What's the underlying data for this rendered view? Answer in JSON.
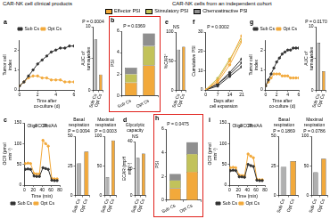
{
  "header": {
    "left": "CAR-NK cell clinical products",
    "right": "CAR-NK cells from an independent cohort"
  },
  "chart_data": [
    {
      "panel": "a",
      "type": "line",
      "x_label": "Time after co-culture (d)",
      "y_label": "Tumor cell index",
      "x": [
        0,
        0.5,
        1,
        1.5,
        2,
        2.5,
        3,
        3.5,
        4,
        4.5,
        5,
        5.5,
        6
      ],
      "xlim": [
        0,
        6
      ],
      "xticks": [
        0,
        2,
        4,
        6
      ],
      "ylim": [
        0,
        2.5
      ],
      "yticks": [
        0,
        1,
        2
      ],
      "series": [
        {
          "name": "Sub Cs",
          "color": "#333333",
          "values": [
            0.2,
            0.4,
            0.7,
            1.0,
            1.3,
            1.5,
            1.7,
            1.9,
            2.0,
            2.1,
            2.1,
            2.2,
            2.2
          ]
        },
        {
          "name": "Opt Cs",
          "color": "#f2a93b",
          "values": [
            0.2,
            0.4,
            0.6,
            0.7,
            0.7,
            0.6,
            0.6,
            0.5,
            0.5,
            0.5,
            0.4,
            0.4,
            0.4
          ]
        }
      ],
      "legend": "top",
      "marker": "circle",
      "grid": false
    },
    {
      "type": "bar",
      "y_label": "AUC of tumor index",
      "annotation": "P = 0.0004",
      "categories": [
        "Sub Cs",
        "Opt Cs"
      ],
      "values": [
        8,
        2.5
      ],
      "colors": [
        "#b0b0b0",
        "#f2a93b"
      ],
      "ylim": [
        0,
        10
      ],
      "yticks": [
        0,
        5,
        10
      ],
      "grid": false
    },
    {
      "panel": "b",
      "type": "bar",
      "stacked": true,
      "y_label": "PSI",
      "annotation": "P = 0.0369",
      "categories": [
        "Sub Cs",
        "Opt Cs"
      ],
      "series": [
        {
          "name": "Effector PSI",
          "color": "#f2a93b",
          "values": [
            1.2,
            2.8
          ]
        },
        {
          "name": "Stimulatory PSI",
          "color": "#c2c25a",
          "values": [
            0.8,
            1.8
          ]
        },
        {
          "name": "Chemoattractive PSI",
          "color": "#8f8f8f",
          "values": [
            0.6,
            1.2
          ]
        }
      ],
      "ylim": [
        0,
        6
      ],
      "yticks": [
        0,
        2,
        4,
        6
      ],
      "legend": "top",
      "grid": false
    },
    {
      "panel": "e",
      "type": "bar",
      "y_label": "%CAR⁺",
      "annotation": "NS",
      "categories": [
        "Sub Cs",
        "Opt Cs"
      ],
      "values": [
        70,
        75
      ],
      "colors": [
        "#b0b0b0",
        "#f2a93b"
      ],
      "ylim": [
        0,
        100
      ],
      "yticks": [
        0,
        50,
        100
      ],
      "grid": false
    },
    {
      "panel": "f",
      "type": "line",
      "x_label": "Days after cell expansion",
      "y_label": "Cumulative PSI",
      "annotation": "P = 0.0002",
      "x": [
        0,
        7,
        14,
        21
      ],
      "xlim": [
        0,
        21
      ],
      "xticks": [
        0,
        7,
        14,
        21
      ],
      "ylim": [
        0,
        30
      ],
      "yticks": [
        0,
        10,
        20,
        30
      ],
      "series": [
        {
          "color": "#f2a93b",
          "values": [
            0,
            5,
            15,
            28
          ]
        },
        {
          "color": "#f2a93b",
          "values": [
            0,
            4,
            13,
            25
          ]
        },
        {
          "color": "#c2c25a",
          "values": [
            0,
            6,
            16,
            26
          ]
        },
        {
          "color": "#333333",
          "values": [
            0,
            3,
            8,
            14
          ]
        },
        {
          "color": "#333333",
          "values": [
            0,
            2,
            7,
            12
          ]
        },
        {
          "color": "#333333",
          "values": [
            0,
            3,
            9,
            16
          ]
        }
      ],
      "marker": "circle",
      "grid": false
    },
    {
      "panel": "g",
      "type": "line",
      "x_label": "Time after co-culture (d)",
      "y_label": "Tumor cell index",
      "x": [
        0,
        0.5,
        1,
        1.5,
        2,
        2.5,
        3,
        3.5,
        4,
        4.5,
        5,
        5.5,
        6
      ],
      "xlim": [
        0,
        6
      ],
      "xticks": [
        0,
        2,
        4,
        6
      ],
      "ylim": [
        0,
        2.5
      ],
      "yticks": [
        0,
        1,
        2
      ],
      "series": [
        {
          "name": "Sub Cs",
          "color": "#333333",
          "values": [
            0.2,
            0.5,
            0.8,
            1.1,
            1.4,
            1.6,
            1.8,
            1.9,
            2.0,
            2.0,
            2.1,
            2.1,
            2.1
          ]
        },
        {
          "name": "Opt Cs",
          "color": "#f2a93b",
          "values": [
            0.2,
            0.4,
            0.6,
            0.8,
            0.8,
            0.8,
            0.7,
            0.7,
            0.7,
            0.6,
            0.6,
            0.6,
            0.6
          ]
        }
      ],
      "legend": "top",
      "marker": "circle",
      "grid": false
    },
    {
      "type": "bar",
      "y_label": "AUC of tumor index",
      "annotation": "P = 0.0170",
      "categories": [
        "Sub Cs",
        "Opt Cs"
      ],
      "values": [
        7.5,
        3
      ],
      "colors": [
        "#b0b0b0",
        "#f2a93b"
      ],
      "ylim": [
        0,
        10
      ],
      "yticks": [
        0,
        5,
        10
      ],
      "grid": false
    },
    {
      "panel": "c",
      "type": "line",
      "x_label": "Time (min)",
      "y_label": "OCR (pmol min⁻¹)",
      "x": [
        2,
        8,
        14,
        22,
        28,
        34,
        42,
        48,
        54,
        62,
        68,
        74
      ],
      "xlim": [
        0,
        80
      ],
      "xticks": [
        0,
        20,
        40,
        60,
        80
      ],
      "ylim": [
        0,
        150
      ],
      "yticks": [
        0,
        50,
        100,
        150
      ],
      "injections": [
        {
          "x": 18,
          "label": "Oligo"
        },
        {
          "x": 38,
          "label": "FCCP"
        },
        {
          "x": 58,
          "label": "Rot/AA"
        }
      ],
      "series": [
        {
          "name": "Sub Cs",
          "color": "#333333",
          "values": [
            38,
            39,
            38,
            22,
            21,
            21,
            42,
            40,
            38,
            12,
            11,
            11
          ]
        },
        {
          "name": "Opt Cs",
          "color": "#f2a93b",
          "values": [
            52,
            53,
            52,
            28,
            27,
            27,
            108,
            100,
            94,
            16,
            15,
            15
          ]
        }
      ],
      "legend": "bottom",
      "marker": "circle",
      "grid": false
    },
    {
      "type": "bar",
      "title": "Basal respiration",
      "annotation": "P = 0.0094",
      "categories": [
        "Sub Cs",
        "Opt Cs"
      ],
      "values": [
        27,
        37
      ],
      "colors": [
        "#b0b0b0",
        "#f2a93b"
      ],
      "ylim": [
        0,
        50
      ],
      "yticks": [
        0,
        25,
        50
      ],
      "grid": false
    },
    {
      "type": "bar",
      "title": "Maximal respiration",
      "annotation": "P = 0.0003",
      "categories": [
        "Sub Cs",
        "Opt Cs"
      ],
      "values": [
        31,
        93
      ],
      "colors": [
        "#b0b0b0",
        "#f2a93b"
      ],
      "ylim": [
        0,
        100
      ],
      "yticks": [
        0,
        50,
        100
      ],
      "grid": false
    },
    {
      "panel": "d",
      "type": "bar",
      "title": "Glycolytic capacity",
      "y_label": "ECAR (mpH min⁻¹)",
      "annotation": "NS",
      "categories": [
        "Sub Cs",
        "Opt Cs"
      ],
      "values": [
        28,
        31
      ],
      "colors": [
        "#b0b0b0",
        "#f2a93b"
      ],
      "ylim": [
        0,
        40
      ],
      "yticks": [
        0,
        20,
        40
      ],
      "grid": false
    },
    {
      "panel": "h",
      "type": "bar",
      "stacked": true,
      "y_label": "PSI",
      "annotation": "P = 0.0475",
      "categories": [
        "Sub Cs",
        "Opt Cs"
      ],
      "series": [
        {
          "name": "Effector PSI",
          "color": "#f2a93b",
          "values": [
            1.0,
            2.4
          ]
        },
        {
          "name": "Stimulatory PSI",
          "color": "#c2c25a",
          "values": [
            0.7,
            1.5
          ]
        },
        {
          "name": "Chemoattractive PSI",
          "color": "#8f8f8f",
          "values": [
            0.5,
            1.0
          ]
        }
      ],
      "ylim": [
        0,
        6
      ],
      "yticks": [
        0,
        2,
        4,
        6
      ],
      "grid": false
    },
    {
      "panel": "i",
      "type": "line",
      "x_label": "Time (min)",
      "y_label": "OCR (pmol min⁻¹)",
      "x": [
        2,
        8,
        14,
        22,
        28,
        34,
        42,
        48,
        54,
        62,
        68,
        74
      ],
      "xlim": [
        0,
        80
      ],
      "xticks": [
        0,
        20,
        40,
        60,
        80
      ],
      "ylim": [
        0,
        150
      ],
      "yticks": [
        0,
        50,
        100,
        150
      ],
      "injections": [
        {
          "x": 18,
          "label": "Oligo"
        },
        {
          "x": 38,
          "label": "FCCP"
        },
        {
          "x": 58,
          "label": "Rot/AA"
        }
      ],
      "series": [
        {
          "name": "Sub Cs",
          "color": "#333333",
          "values": [
            35,
            36,
            35,
            20,
            20,
            19,
            50,
            47,
            45,
            12,
            11,
            11
          ]
        },
        {
          "name": "Opt Cs",
          "color": "#f2a93b",
          "values": [
            42,
            43,
            42,
            24,
            23,
            23,
            75,
            70,
            66,
            14,
            13,
            13
          ]
        }
      ],
      "legend": "bottom",
      "marker": "circle",
      "grid": false
    },
    {
      "type": "bar",
      "title": "Basal respiration",
      "annotation": "P = 0.1869",
      "categories": [
        "Sub Cs",
        "Opt Cs"
      ],
      "values": [
        24,
        29
      ],
      "colors": [
        "#b0b0b0",
        "#f2a93b"
      ],
      "ylim": [
        0,
        50
      ],
      "yticks": [
        0,
        25,
        50
      ],
      "grid": false
    },
    {
      "type": "bar",
      "title": "Maximal respiration",
      "annotation": "P = 0.0786",
      "categories": [
        "Sub Cs",
        "Opt Cs"
      ],
      "values": [
        39,
        62
      ],
      "colors": [
        "#b0b0b0",
        "#f2a93b"
      ],
      "ylim": [
        0,
        100
      ],
      "yticks": [
        0,
        50,
        100
      ],
      "grid": false
    }
  ]
}
